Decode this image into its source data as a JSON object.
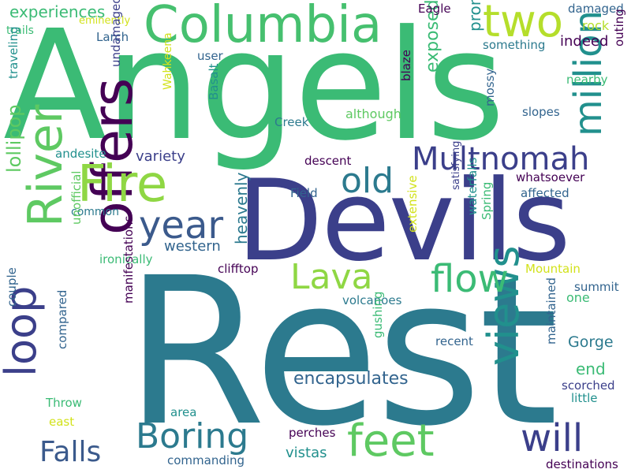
{
  "words": {
    "rest": "Rest",
    "angels": "Angels",
    "devils": "Devils",
    "columbia": "Columbia",
    "river": "River",
    "offers": "offers",
    "fire": "Fire",
    "two": "two",
    "million": "million",
    "views": "views",
    "boring": "Boring",
    "feet": "feet",
    "loop": "loop",
    "multnomah": "Multnomah",
    "lava": "Lava",
    "flow": "flow",
    "old": "old",
    "year": "year",
    "will": "will",
    "falls": "Falls",
    "encapsulates": "encapsulates",
    "lollipop": "lollipop",
    "experiences": "experiences",
    "exposed": "exposed",
    "promontory": "promontory",
    "indeed": "indeed",
    "variety": "variety",
    "western": "western",
    "heavenly": "heavenly",
    "gorge": "Gorge",
    "end": "end",
    "vistas": "vistas",
    "eagle": "Eagle",
    "damaged": "damaged",
    "rock": "rock",
    "something": "something",
    "outing": "outing",
    "nearby": "nearby",
    "slopes": "slopes",
    "although": "although",
    "creek": "Creek",
    "basalt": "Basalt",
    "wahkeena": "Wahkeena",
    "undamaged": "undamaged",
    "blaze": "blaze",
    "mossy": "mossy",
    "trails": "trails",
    "eminently": "eminently",
    "larch": "Larch",
    "user": "user",
    "traveling": "traveling",
    "andesite": "andesite",
    "descent": "descent",
    "whatsoever": "whatsoever",
    "affected": "affected",
    "field": "Field",
    "spring": "Spring",
    "waterfalls": "waterfalls",
    "satisfying": "satisfying",
    "common": "common",
    "unofficial": "unofficial",
    "ironically": "ironically",
    "clifftop": "clifftop",
    "extensive": "extensive",
    "mountain": "Mountain",
    "summit": "summit",
    "one": "one",
    "couple": "couple",
    "manifestations": "manifestations",
    "volcanoes": "volcanoes",
    "compared": "compared",
    "gushing": "gushing",
    "maintained": "maintained",
    "recent": "recent",
    "scorched": "scorched",
    "little": "little",
    "throw": "Throw",
    "east": "east",
    "area": "area",
    "perches": "perches",
    "commanding": "commanding",
    "destinations": "destinations"
  },
  "palette": {
    "background": "#ffffff",
    "dark_purple": "#440154",
    "indigo": "#3b3f8a",
    "blue": "#32648e",
    "teal": "#21908d",
    "green": "#3bbb75",
    "lime": "#8fd744",
    "yellow": "#d2e21b"
  }
}
